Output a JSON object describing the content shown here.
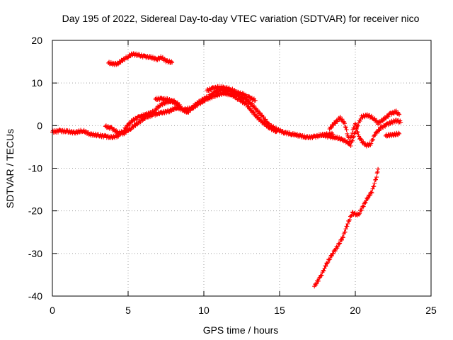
{
  "chart_data": {
    "type": "scatter",
    "title": "Day 195 of 2022, Sidereal Day-to-day VTEC variation (SDTVAR) for receiver nico",
    "xlabel": "GPS time / hours",
    "ylabel": "SDTVAR / TECUs",
    "xlim": [
      0,
      25
    ],
    "ylim": [
      -40,
      20
    ],
    "xticks": [
      0,
      5,
      10,
      15,
      20,
      25
    ],
    "yticks": [
      -40,
      -30,
      -20,
      -10,
      0,
      10,
      20
    ],
    "grid": true,
    "marker": "+",
    "color": "#ff0000",
    "series": [
      {
        "name": "main",
        "points": [
          [
            0,
            -1.5
          ],
          [
            0.5,
            -1.2
          ],
          [
            1,
            -1.4
          ],
          [
            1.5,
            -1.6
          ],
          [
            2,
            -1.2
          ],
          [
            2.5,
            -2
          ],
          [
            3,
            -2.3
          ],
          [
            3.5,
            -2.5
          ],
          [
            3.9,
            -2.8
          ],
          [
            4.3,
            -2.4
          ],
          [
            4.7,
            -1.2
          ],
          [
            5,
            0.2
          ],
          [
            5.3,
            1.2
          ],
          [
            5.7,
            2
          ],
          [
            6.2,
            2.6
          ],
          [
            6.7,
            3.3
          ],
          [
            7.1,
            4.8
          ],
          [
            7.5,
            5.5
          ],
          [
            8,
            5.8
          ],
          [
            8.5,
            4
          ],
          [
            8.9,
            3
          ],
          [
            9.3,
            4.5
          ],
          [
            9.8,
            5.9
          ],
          [
            10.3,
            6.8
          ],
          [
            10.7,
            7.8
          ],
          [
            11.2,
            8.4
          ],
          [
            11.7,
            8.1
          ],
          [
            12.1,
            7.4
          ],
          [
            12.6,
            6.6
          ],
          [
            13.1,
            5.3
          ],
          [
            13.5,
            3.6
          ],
          [
            13.9,
            2
          ],
          [
            14.3,
            0.2
          ],
          [
            14.8,
            -0.9
          ],
          [
            15.3,
            -1.6
          ],
          [
            15.8,
            -2
          ],
          [
            16.3,
            -2.3
          ],
          [
            16.8,
            -2.8
          ],
          [
            17.3,
            -2.6
          ],
          [
            17.7,
            -2.3
          ],
          [
            18.2,
            -2
          ],
          [
            18.5,
            -2
          ]
        ]
      },
      {
        "name": "lower-branch",
        "points": [
          [
            3.5,
            -0.2
          ],
          [
            3.9,
            -0.6
          ],
          [
            4.3,
            -1.6
          ],
          [
            4.7,
            -1.8
          ],
          [
            5.2,
            -0.6
          ],
          [
            5.7,
            0.8
          ],
          [
            6.2,
            2
          ],
          [
            6.7,
            2.6
          ],
          [
            7.2,
            3
          ],
          [
            7.7,
            3.4
          ],
          [
            8.2,
            4.2
          ],
          [
            8.7,
            3.8
          ],
          [
            9.2,
            4
          ],
          [
            9.7,
            5.2
          ],
          [
            10.2,
            6.2
          ],
          [
            10.7,
            7
          ],
          [
            11.3,
            7.6
          ],
          [
            11.8,
            7.3
          ],
          [
            12.3,
            6.2
          ],
          [
            12.8,
            5
          ],
          [
            13.3,
            2.8
          ],
          [
            13.8,
            1
          ],
          [
            14.3,
            -0.4
          ],
          [
            14.8,
            -1.4
          ]
        ]
      },
      {
        "name": "upper-left",
        "points": [
          [
            6.8,
            6.2
          ],
          [
            7.2,
            6.3
          ],
          [
            7.6,
            6.1
          ],
          [
            8,
            5.6
          ],
          [
            8.4,
            4.9
          ]
        ]
      },
      {
        "name": "upper-right",
        "points": [
          [
            10.2,
            8.2
          ],
          [
            10.6,
            8.8
          ],
          [
            11,
            9
          ],
          [
            11.4,
            8.9
          ],
          [
            11.8,
            8.5
          ],
          [
            12.2,
            7.8
          ],
          [
            12.6,
            7.3
          ],
          [
            13,
            6.6
          ],
          [
            13.4,
            5.9
          ]
        ]
      },
      {
        "name": "top-arc",
        "points": [
          [
            3.7,
            14.7
          ],
          [
            4,
            14.5
          ],
          [
            4.3,
            14.5
          ],
          [
            4.6,
            15.3
          ],
          [
            5,
            16.2
          ],
          [
            5.3,
            16.8
          ],
          [
            5.7,
            16.5
          ],
          [
            6.1,
            16.2
          ],
          [
            6.5,
            16
          ],
          [
            6.9,
            15.6
          ],
          [
            7.2,
            16
          ],
          [
            7.5,
            15.2
          ],
          [
            7.9,
            14.8
          ]
        ]
      },
      {
        "name": "right-upper",
        "points": [
          [
            18.3,
            -0.8
          ],
          [
            18.6,
            0.5
          ],
          [
            19,
            1.8
          ],
          [
            19.3,
            0.5
          ],
          [
            19.5,
            -2.2
          ],
          [
            19.7,
            -4.5
          ],
          [
            19.9,
            -2.5
          ],
          [
            20.1,
            -0.5
          ],
          [
            20.4,
            2
          ],
          [
            20.8,
            2.5
          ],
          [
            21.2,
            1.7
          ],
          [
            21.5,
            0.6
          ],
          [
            21.9,
            1.5
          ],
          [
            22.3,
            2.8
          ],
          [
            22.7,
            3.2
          ],
          [
            22.9,
            2.6
          ]
        ]
      },
      {
        "name": "right-lower",
        "points": [
          [
            17.8,
            -2.2
          ],
          [
            18.3,
            -2.6
          ],
          [
            18.8,
            -2.9
          ],
          [
            19.2,
            -3.3
          ],
          [
            19.6,
            -4.2
          ],
          [
            19.8,
            -1.5
          ],
          [
            20,
            0.5
          ],
          [
            20.2,
            -2.4
          ],
          [
            20.4,
            -3.6
          ],
          [
            20.7,
            -4.6
          ],
          [
            21,
            -4.4
          ],
          [
            21.3,
            -2
          ],
          [
            21.7,
            -0.5
          ],
          [
            22.1,
            0.3
          ],
          [
            22.4,
            0.8
          ],
          [
            22.7,
            1.2
          ],
          [
            23,
            0.8
          ]
        ]
      },
      {
        "name": "right-stub",
        "points": [
          [
            22,
            -2.4
          ],
          [
            22.3,
            -2.2
          ],
          [
            22.6,
            -2.1
          ],
          [
            22.9,
            -1.9
          ]
        ]
      },
      {
        "name": "descending",
        "points": [
          [
            17.3,
            -37.7
          ],
          [
            17.7,
            -35.5
          ],
          [
            18.1,
            -32.5
          ],
          [
            18.5,
            -30
          ],
          [
            18.8,
            -28.5
          ],
          [
            19.2,
            -26
          ],
          [
            19.5,
            -23
          ],
          [
            19.8,
            -20.5
          ],
          [
            20.2,
            -21
          ],
          [
            20.5,
            -19
          ],
          [
            20.8,
            -17
          ],
          [
            21.1,
            -15.5
          ],
          [
            21.4,
            -12
          ],
          [
            21.5,
            -10.2
          ]
        ]
      }
    ]
  }
}
